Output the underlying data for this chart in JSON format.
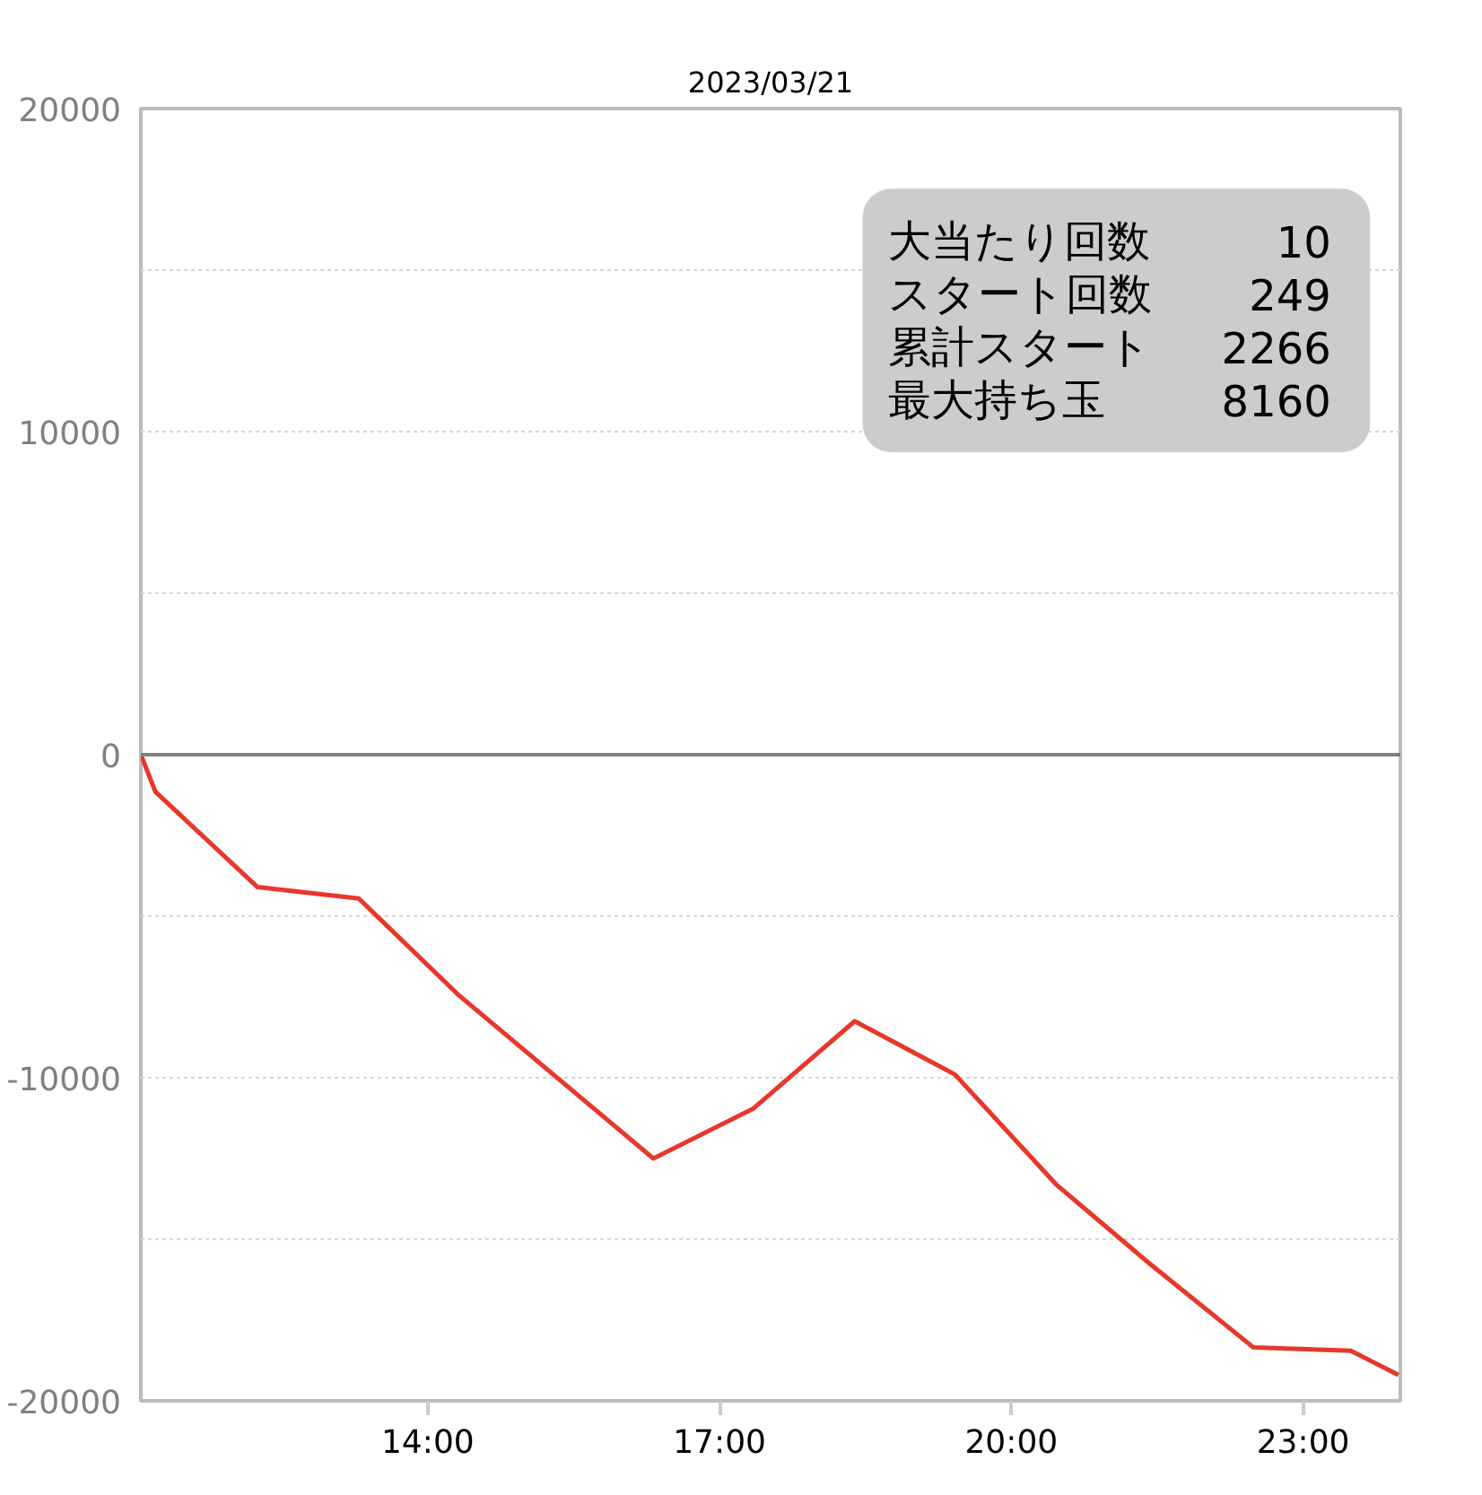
{
  "chart_data": {
    "type": "line",
    "title": "2023/03/21",
    "x": [
      11.05,
      11.2,
      12.25,
      13.29,
      14.32,
      16.32,
      17.35,
      18.39,
      19.42,
      20.46,
      21.42,
      22.49,
      23.49,
      23.98
    ],
    "series": [
      {
        "color": "#e8372a",
        "values": [
          0,
          -1150,
          -4100,
          -4450,
          -7450,
          -12500,
          -10950,
          -8250,
          -9900,
          -13300,
          -15750,
          -18350,
          -18450,
          -19200
        ]
      }
    ],
    "xlim": [
      11.05,
      24.0
    ],
    "xticks": [
      {
        "value": 14,
        "label": "14:00"
      },
      {
        "value": 17,
        "label": "17:00"
      },
      {
        "value": 20,
        "label": "20:00"
      },
      {
        "value": 23,
        "label": "23:00"
      }
    ],
    "ylim": [
      -20000,
      20000
    ],
    "yticks": [
      -20000,
      {
        "value": -15000,
        "label": null
      },
      -10000,
      {
        "value": -5000,
        "label": null
      },
      0,
      {
        "value": 5000,
        "label": null
      },
      10000,
      {
        "value": 15000,
        "label": null
      },
      20000
    ],
    "grid": "y",
    "line_style": "solid",
    "ref_lines": [
      {
        "axis": "y",
        "value": 0,
        "color": "#808080"
      }
    ],
    "annotations": [
      "大当たり回数 10",
      "スタート回数 249",
      "累計スタート 2266",
      "最大持ち玉 8160"
    ]
  }
}
